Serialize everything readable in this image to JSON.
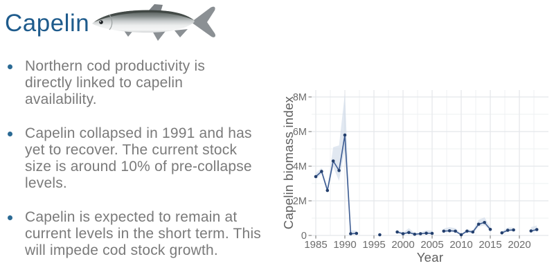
{
  "slide": {
    "title": "Capelin",
    "bullets": [
      {
        "text": "Northern cod productivity is\ndirectly linked to capelin\navailability."
      },
      {
        "text": "Capelin collapsed in 1991 and has\nyet to recover. The current stock\nsize is around 10% of pre-collapse\nlevels."
      },
      {
        "text": "Capelin is expected to remain at\ncurrent levels in the short term. This\nwill impede cod stock growth."
      }
    ],
    "fish_illustration": "capelin-fish"
  },
  "colors": {
    "title": "#1e5b8c",
    "body_text": "#7a7a7a",
    "bullet_dot": "#2b6a94",
    "line": "#3d5c92",
    "point": "#233f6d",
    "band": "#c9d6e5",
    "grid_major": "#e4e7ea",
    "grid_minor": "#eef0f2",
    "tick_mark": "#707070",
    "axis_text": "#6c6c6c",
    "axis_title": "#5f5f5f"
  },
  "chart_data": {
    "type": "line",
    "title": "",
    "xlabel": "Year",
    "ylabel": "Capelin biomass index",
    "unit": "millions",
    "legend": "none",
    "grid": true,
    "xlim": [
      1984,
      2025
    ],
    "ylim": [
      0,
      8.4
    ],
    "x_ticks": [
      1985,
      1990,
      1995,
      2000,
      2005,
      2010,
      2015,
      2020
    ],
    "x_minor_ticks": [
      1987.5,
      1992.5,
      1997.5,
      2002.5,
      2007.5,
      2012.5,
      2017.5,
      2022.5
    ],
    "y_ticks": [
      {
        "v": 0,
        "label": "0"
      },
      {
        "v": 2,
        "label": "2M"
      },
      {
        "v": 4,
        "label": "4M"
      },
      {
        "v": 6,
        "label": "6M"
      },
      {
        "v": 8,
        "label": "8M"
      }
    ],
    "y_minor_ticks": [
      1,
      3,
      5,
      7
    ],
    "series": [
      {
        "name": "Capelin biomass index",
        "points": [
          {
            "year": 1985,
            "value": 3.4,
            "lo": 3.25,
            "hi": 3.6
          },
          {
            "year": 1986,
            "value": 3.7,
            "lo": 3.55,
            "hi": 3.9
          },
          {
            "year": 1987,
            "value": 2.6,
            "lo": 2.45,
            "hi": 2.8
          },
          {
            "year": 1988,
            "value": 4.3,
            "lo": 3.95,
            "hi": 5.1
          },
          {
            "year": 1989,
            "value": 3.75,
            "lo": 3.15,
            "hi": 5.2
          },
          {
            "year": 1990,
            "value": 5.8,
            "lo": 5.0,
            "hi": 8.2
          },
          {
            "year": 1991,
            "value": 0.1,
            "lo": 0.04,
            "hi": 0.3
          },
          {
            "year": 1992,
            "value": 0.12,
            "lo": 0.05,
            "hi": 0.28
          },
          {
            "year": 1996,
            "value": 0.04,
            "lo": 0.02,
            "hi": 0.1
          },
          {
            "year": 1999,
            "value": 0.2,
            "lo": 0.13,
            "hi": 0.3
          },
          {
            "year": 2000,
            "value": 0.1,
            "lo": 0.06,
            "hi": 0.17
          },
          {
            "year": 2001,
            "value": 0.17,
            "lo": 0.1,
            "hi": 0.42
          },
          {
            "year": 2002,
            "value": 0.07,
            "lo": 0.04,
            "hi": 0.13
          },
          {
            "year": 2003,
            "value": 0.1,
            "lo": 0.06,
            "hi": 0.18
          },
          {
            "year": 2004,
            "value": 0.13,
            "lo": 0.08,
            "hi": 0.3
          },
          {
            "year": 2005,
            "value": 0.12,
            "lo": 0.07,
            "hi": 0.28
          },
          {
            "year": 2007,
            "value": 0.25,
            "lo": 0.18,
            "hi": 0.4
          },
          {
            "year": 2008,
            "value": 0.27,
            "lo": 0.2,
            "hi": 0.48
          },
          {
            "year": 2009,
            "value": 0.25,
            "lo": 0.18,
            "hi": 0.42
          },
          {
            "year": 2010,
            "value": 0.04,
            "lo": 0.02,
            "hi": 0.1
          },
          {
            "year": 2011,
            "value": 0.25,
            "lo": 0.17,
            "hi": 0.36
          },
          {
            "year": 2012,
            "value": 0.2,
            "lo": 0.13,
            "hi": 0.3
          },
          {
            "year": 2013,
            "value": 0.65,
            "lo": 0.5,
            "hi": 0.9
          },
          {
            "year": 2014,
            "value": 0.75,
            "lo": 0.58,
            "hi": 1.05
          },
          {
            "year": 2015,
            "value": 0.35,
            "lo": 0.27,
            "hi": 0.5
          },
          {
            "year": 2017,
            "value": 0.15,
            "lo": 0.1,
            "hi": 0.24
          },
          {
            "year": 2018,
            "value": 0.3,
            "lo": 0.22,
            "hi": 0.46
          },
          {
            "year": 2019,
            "value": 0.32,
            "lo": 0.24,
            "hi": 0.45
          },
          {
            "year": 2022,
            "value": 0.26,
            "lo": 0.19,
            "hi": 0.48
          },
          {
            "year": 2023,
            "value": 0.34,
            "lo": 0.26,
            "hi": 0.58
          }
        ]
      }
    ]
  }
}
